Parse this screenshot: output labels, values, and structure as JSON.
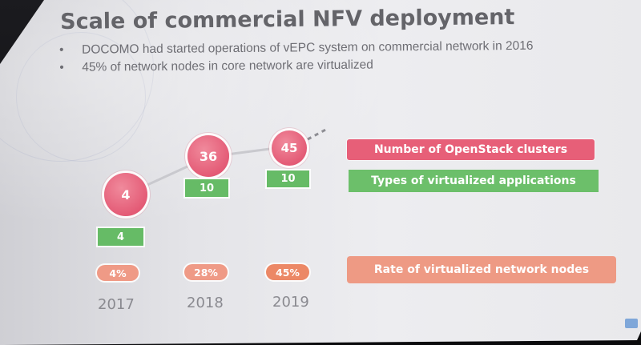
{
  "slide": {
    "title": "Scale of commercial NFV deployment",
    "bullets": [
      {
        "marker": "•",
        "text": "DOCOMO had started operations of vEPC system on commercial network in 2016"
      },
      {
        "marker": "•",
        "text": "45% of network nodes in core network are virtualized"
      }
    ]
  },
  "years": [
    {
      "year": "2017",
      "clusters": "4",
      "apps": "4",
      "rate": "4%"
    },
    {
      "year": "2018",
      "clusters": "36",
      "apps": "10",
      "rate": "28%"
    },
    {
      "year": "2019",
      "clusters": "45",
      "apps": "10",
      "rate": "45%"
    }
  ],
  "legend": {
    "clusters": "Number of OpenStack clusters",
    "apps": "Types of virtualized applications",
    "rate": "Rate of virtualized network nodes"
  },
  "colors": {
    "clusters": "#e45b76",
    "apps": "#66bb66",
    "rate": "#ef9a86",
    "rate_highlight": "#ec8866",
    "title": "#646469"
  }
}
